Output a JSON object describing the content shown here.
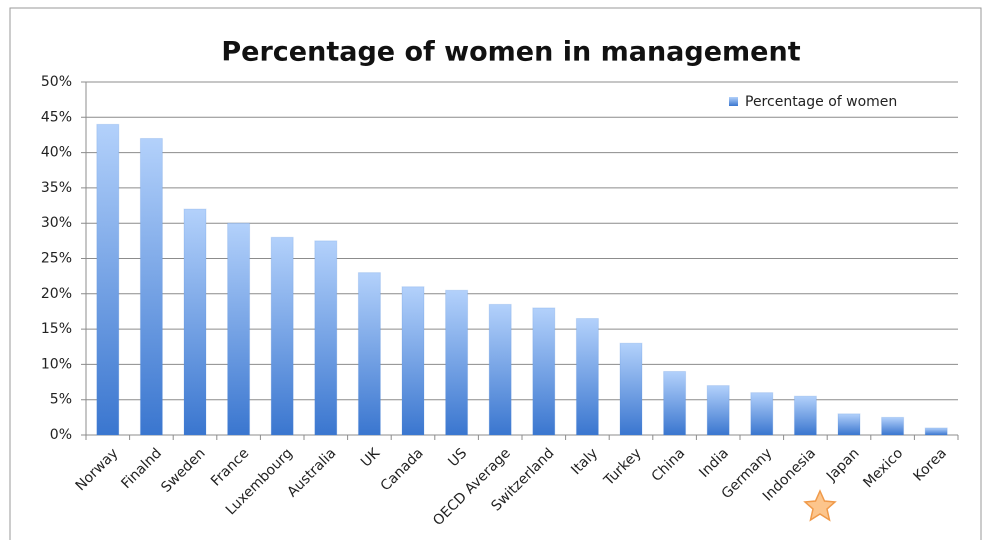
{
  "chart_data": {
    "type": "bar",
    "title": "Percentage of women in management",
    "categories": [
      "Norway",
      "Finalnd",
      "Sweden",
      "France",
      "Luxembourg",
      "Australia",
      "UK",
      "Canada",
      "US",
      "OECD Average",
      "Switzerland",
      "Italy",
      "Turkey",
      "China",
      "India",
      "Germany",
      "Indonesia",
      "Japan",
      "Mexico",
      "Korea"
    ],
    "series": [
      {
        "name": "Percentage of women",
        "color": "#4a86d8",
        "values": [
          44,
          42,
          32,
          30,
          28,
          27.5,
          23,
          21,
          20.5,
          18.5,
          18,
          16.5,
          13,
          9,
          7,
          6,
          5.5,
          3,
          2.5,
          1
        ]
      }
    ],
    "ylim": [
      0,
      50
    ],
    "yticks": [
      {
        "value": 0,
        "label": "0%"
      },
      {
        "value": 5,
        "label": "5%"
      },
      {
        "value": 10,
        "label": "10%"
      },
      {
        "value": 15,
        "label": "15%"
      },
      {
        "value": 20,
        "label": "20%"
      },
      {
        "value": 25,
        "label": "25%"
      },
      {
        "value": 30,
        "label": "30%"
      },
      {
        "value": 35,
        "label": "35%"
      },
      {
        "value": 40,
        "label": "40%"
      },
      {
        "value": 45,
        "label": "45%"
      },
      {
        "value": 50,
        "label": "50%"
      }
    ],
    "grid": true,
    "legend": "top-right"
  }
}
